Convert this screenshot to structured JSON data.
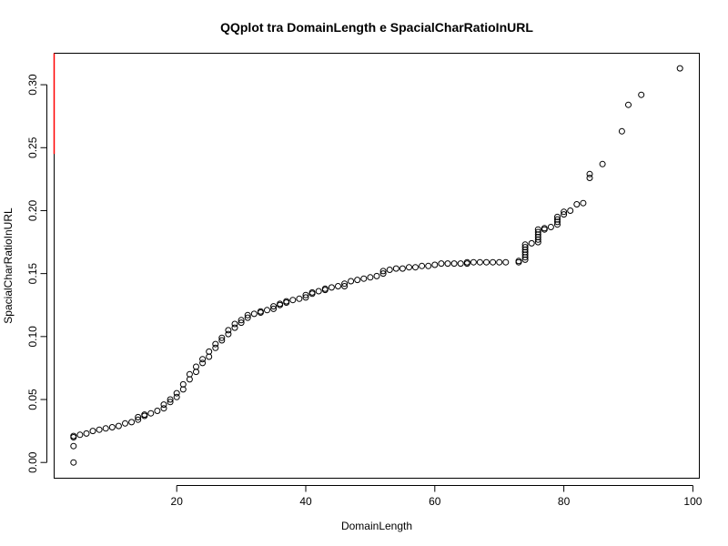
{
  "chart_data": {
    "type": "scatter",
    "title": "QQplot tra DomainLength e SpacialCharRatioInURL",
    "xlabel": "DomainLength",
    "ylabel": "SpacialCharRatioInURL",
    "xlim": [
      1,
      101
    ],
    "ylim": [
      -0.0125,
      0.325
    ],
    "xticks": [
      20,
      40,
      60,
      80,
      100
    ],
    "yticks": [
      0.0,
      0.05,
      0.1,
      0.15,
      0.2,
      0.25,
      0.3
    ],
    "ytick_labels": [
      "0.00",
      "0.05",
      "0.10",
      "0.15",
      "0.20",
      "0.25",
      "0.30"
    ],
    "grid": false,
    "marker": "open-circle",
    "red_segment": {
      "x": 1,
      "y": [
        0.245,
        0.325
      ],
      "color": "#ff0000"
    },
    "points": [
      [
        4,
        0.0
      ],
      [
        4,
        0.013
      ],
      [
        4,
        0.02
      ],
      [
        4,
        0.021
      ],
      [
        5,
        0.022
      ],
      [
        6,
        0.023
      ],
      [
        7,
        0.025
      ],
      [
        8,
        0.026
      ],
      [
        9,
        0.027
      ],
      [
        10,
        0.028
      ],
      [
        11,
        0.029
      ],
      [
        12,
        0.031
      ],
      [
        13,
        0.032
      ],
      [
        14,
        0.034
      ],
      [
        14,
        0.036
      ],
      [
        15,
        0.037
      ],
      [
        15,
        0.038
      ],
      [
        16,
        0.039
      ],
      [
        17,
        0.041
      ],
      [
        18,
        0.043
      ],
      [
        18,
        0.046
      ],
      [
        19,
        0.048
      ],
      [
        19,
        0.05
      ],
      [
        20,
        0.052
      ],
      [
        20,
        0.055
      ],
      [
        21,
        0.058
      ],
      [
        21,
        0.062
      ],
      [
        22,
        0.066
      ],
      [
        22,
        0.07
      ],
      [
        23,
        0.072
      ],
      [
        23,
        0.076
      ],
      [
        24,
        0.079
      ],
      [
        24,
        0.082
      ],
      [
        25,
        0.084
      ],
      [
        25,
        0.088
      ],
      [
        26,
        0.091
      ],
      [
        26,
        0.094
      ],
      [
        27,
        0.097
      ],
      [
        27,
        0.099
      ],
      [
        28,
        0.102
      ],
      [
        28,
        0.105
      ],
      [
        29,
        0.107
      ],
      [
        29,
        0.11
      ],
      [
        30,
        0.111
      ],
      [
        30,
        0.113
      ],
      [
        31,
        0.115
      ],
      [
        31,
        0.117
      ],
      [
        32,
        0.118
      ],
      [
        33,
        0.119
      ],
      [
        33,
        0.12
      ],
      [
        34,
        0.121
      ],
      [
        35,
        0.122
      ],
      [
        35,
        0.124
      ],
      [
        36,
        0.125
      ],
      [
        36,
        0.126
      ],
      [
        37,
        0.127
      ],
      [
        37,
        0.128
      ],
      [
        38,
        0.129
      ],
      [
        39,
        0.13
      ],
      [
        40,
        0.131
      ],
      [
        40,
        0.133
      ],
      [
        41,
        0.134
      ],
      [
        41,
        0.135
      ],
      [
        42,
        0.136
      ],
      [
        43,
        0.137
      ],
      [
        43,
        0.138
      ],
      [
        44,
        0.139
      ],
      [
        45,
        0.14
      ],
      [
        46,
        0.14
      ],
      [
        46,
        0.142
      ],
      [
        47,
        0.144
      ],
      [
        48,
        0.145
      ],
      [
        49,
        0.146
      ],
      [
        50,
        0.147
      ],
      [
        51,
        0.148
      ],
      [
        52,
        0.15
      ],
      [
        52,
        0.152
      ],
      [
        53,
        0.153
      ],
      [
        54,
        0.154
      ],
      [
        55,
        0.154
      ],
      [
        56,
        0.155
      ],
      [
        57,
        0.155
      ],
      [
        58,
        0.156
      ],
      [
        59,
        0.156
      ],
      [
        60,
        0.157
      ],
      [
        61,
        0.158
      ],
      [
        62,
        0.158
      ],
      [
        63,
        0.158
      ],
      [
        64,
        0.158
      ],
      [
        65,
        0.158
      ],
      [
        65,
        0.159
      ],
      [
        66,
        0.159
      ],
      [
        67,
        0.159
      ],
      [
        68,
        0.159
      ],
      [
        69,
        0.159
      ],
      [
        70,
        0.159
      ],
      [
        71,
        0.159
      ],
      [
        73,
        0.159
      ],
      [
        73,
        0.16
      ],
      [
        74,
        0.161
      ],
      [
        74,
        0.163
      ],
      [
        74,
        0.165
      ],
      [
        74,
        0.167
      ],
      [
        74,
        0.169
      ],
      [
        74,
        0.171
      ],
      [
        74,
        0.173
      ],
      [
        75,
        0.174
      ],
      [
        76,
        0.175
      ],
      [
        76,
        0.177
      ],
      [
        76,
        0.179
      ],
      [
        76,
        0.181
      ],
      [
        76,
        0.183
      ],
      [
        76,
        0.185
      ],
      [
        77,
        0.185
      ],
      [
        77,
        0.186
      ],
      [
        78,
        0.187
      ],
      [
        79,
        0.189
      ],
      [
        79,
        0.191
      ],
      [
        79,
        0.193
      ],
      [
        79,
        0.195
      ],
      [
        80,
        0.197
      ],
      [
        80,
        0.199
      ],
      [
        81,
        0.2
      ],
      [
        82,
        0.205
      ],
      [
        83,
        0.206
      ],
      [
        84,
        0.226
      ],
      [
        84,
        0.229
      ],
      [
        86,
        0.237
      ],
      [
        89,
        0.263
      ],
      [
        90,
        0.284
      ],
      [
        92,
        0.292
      ],
      [
        98,
        0.313
      ]
    ]
  }
}
